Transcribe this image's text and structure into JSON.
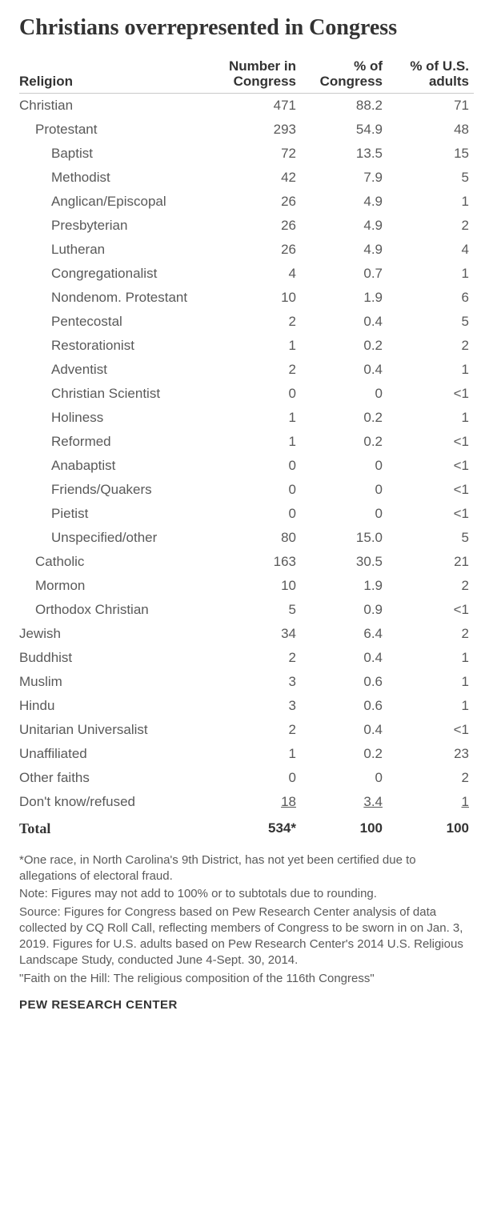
{
  "title": "Christians overrepresented in Congress",
  "columns": {
    "religion": "Religion",
    "number": "Number in Congress",
    "pct_congress": "% of Congress",
    "pct_us": "% of U.S. adults"
  },
  "rows": [
    {
      "label": "Christian",
      "indent": 0,
      "number": "471",
      "pct_congress": "88.2",
      "pct_us": "71"
    },
    {
      "label": "Protestant",
      "indent": 1,
      "number": "293",
      "pct_congress": "54.9",
      "pct_us": "48"
    },
    {
      "label": "Baptist",
      "indent": 2,
      "number": "72",
      "pct_congress": "13.5",
      "pct_us": "15"
    },
    {
      "label": "Methodist",
      "indent": 2,
      "number": "42",
      "pct_congress": "7.9",
      "pct_us": "5"
    },
    {
      "label": "Anglican/Episcopal",
      "indent": 2,
      "number": "26",
      "pct_congress": "4.9",
      "pct_us": "1"
    },
    {
      "label": "Presbyterian",
      "indent": 2,
      "number": "26",
      "pct_congress": "4.9",
      "pct_us": "2"
    },
    {
      "label": "Lutheran",
      "indent": 2,
      "number": "26",
      "pct_congress": "4.9",
      "pct_us": "4"
    },
    {
      "label": "Congregationalist",
      "indent": 2,
      "number": "4",
      "pct_congress": "0.7",
      "pct_us": "1"
    },
    {
      "label": "Nondenom. Protestant",
      "indent": 2,
      "number": "10",
      "pct_congress": "1.9",
      "pct_us": "6"
    },
    {
      "label": "Pentecostal",
      "indent": 2,
      "number": "2",
      "pct_congress": "0.4",
      "pct_us": "5"
    },
    {
      "label": "Restorationist",
      "indent": 2,
      "number": "1",
      "pct_congress": "0.2",
      "pct_us": "2"
    },
    {
      "label": "Adventist",
      "indent": 2,
      "number": "2",
      "pct_congress": "0.4",
      "pct_us": "1"
    },
    {
      "label": "Christian Scientist",
      "indent": 2,
      "number": "0",
      "pct_congress": "0",
      "pct_us": "<1"
    },
    {
      "label": "Holiness",
      "indent": 2,
      "number": "1",
      "pct_congress": "0.2",
      "pct_us": "1"
    },
    {
      "label": "Reformed",
      "indent": 2,
      "number": "1",
      "pct_congress": "0.2",
      "pct_us": "<1"
    },
    {
      "label": "Anabaptist",
      "indent": 2,
      "number": "0",
      "pct_congress": "0",
      "pct_us": "<1"
    },
    {
      "label": "Friends/Quakers",
      "indent": 2,
      "number": "0",
      "pct_congress": "0",
      "pct_us": "<1"
    },
    {
      "label": "Pietist",
      "indent": 2,
      "number": "0",
      "pct_congress": "0",
      "pct_us": "<1"
    },
    {
      "label": "Unspecified/other",
      "indent": 2,
      "number": "80",
      "pct_congress": "15.0",
      "pct_us": "5"
    },
    {
      "label": "Catholic",
      "indent": 1,
      "number": "163",
      "pct_congress": "30.5",
      "pct_us": "21"
    },
    {
      "label": "Mormon",
      "indent": 1,
      "number": "10",
      "pct_congress": "1.9",
      "pct_us": "2"
    },
    {
      "label": "Orthodox Christian",
      "indent": 1,
      "number": "5",
      "pct_congress": "0.9",
      "pct_us": "<1"
    },
    {
      "label": "Jewish",
      "indent": 0,
      "number": "34",
      "pct_congress": "6.4",
      "pct_us": "2"
    },
    {
      "label": "Buddhist",
      "indent": 0,
      "number": "2",
      "pct_congress": "0.4",
      "pct_us": "1"
    },
    {
      "label": "Muslim",
      "indent": 0,
      "number": "3",
      "pct_congress": "0.6",
      "pct_us": "1"
    },
    {
      "label": "Hindu",
      "indent": 0,
      "number": "3",
      "pct_congress": "0.6",
      "pct_us": "1"
    },
    {
      "label": "Unitarian Universalist",
      "indent": 0,
      "number": "2",
      "pct_congress": "0.4",
      "pct_us": "<1"
    },
    {
      "label": "Unaffiliated",
      "indent": 0,
      "number": "1",
      "pct_congress": "0.2",
      "pct_us": "23"
    },
    {
      "label": "Other faiths",
      "indent": 0,
      "number": "0",
      "pct_congress": "0",
      "pct_us": "2"
    },
    {
      "label": "Don't know/refused",
      "indent": 0,
      "number": "18",
      "pct_congress": "3.4",
      "pct_us": "1",
      "underline": true
    }
  ],
  "total": {
    "label": "Total",
    "number": "534*",
    "pct_congress": "100",
    "pct_us": "100"
  },
  "footnotes": [
    "*One race, in North Carolina's 9th District, has not yet been certified due to allegations of electoral fraud.",
    "Note: Figures may not add to 100% or to subtotals due to rounding.",
    "Source: Figures for Congress based on Pew Research Center analysis of data collected by CQ Roll Call, reflecting members of Congress to be sworn in on Jan. 3, 2019. Figures for U.S. adults based on Pew Research Center's 2014 U.S. Religious Landscape Study, conducted June 4-Sept. 30, 2014.",
    "\"Faith on the Hill: The religious composition of the 116th Congress\""
  ],
  "source_org": "PEW RESEARCH CENTER",
  "style": {
    "title_color": "#333333",
    "title_fontsize": 28,
    "header_border_color": "#c9c9c9",
    "body_text_color": "#595959",
    "body_fontsize": 17,
    "footnote_fontsize": 15,
    "background_color": "#ffffff"
  }
}
